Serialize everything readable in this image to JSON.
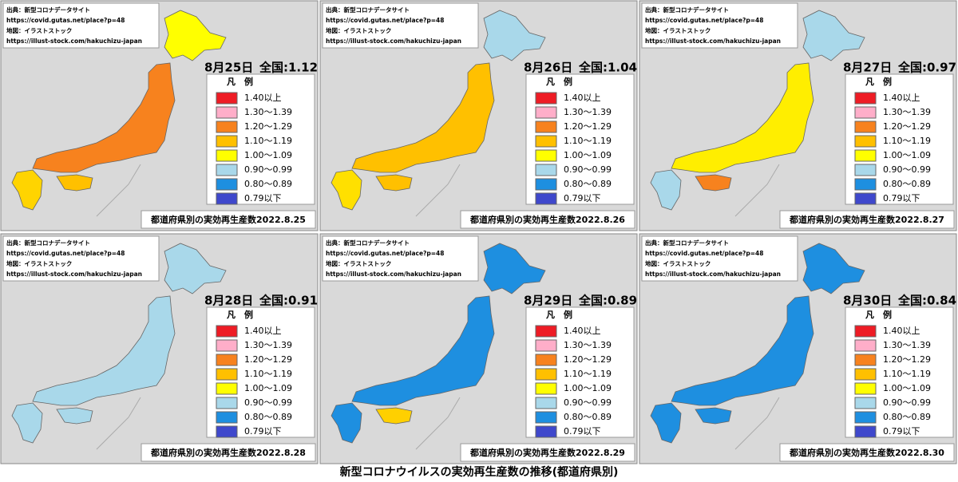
{
  "title": "新型コロナウイルスの実効再生産数の推移(都道府県別)",
  "source_lines": [
    "出典：新型コロナデータサイト",
    "https://covid.gutas.net/place?p=48",
    "地図：イラストストック",
    "https://illust-stock.com/hakuchizu-japan"
  ],
  "legend": {
    "title": "凡　例",
    "items": [
      {
        "label": "1.40以上",
        "color": "#ee1c25"
      },
      {
        "label": "1.30～1.39",
        "color": "#ffaec9"
      },
      {
        "label": "1.20～1.29",
        "color": "#f7821e"
      },
      {
        "label": "1.10～1.19",
        "color": "#ffc000"
      },
      {
        "label": "1.00～1.09",
        "color": "#ffff00"
      },
      {
        "label": "0.90～0.99",
        "color": "#a9d8ea"
      },
      {
        "label": "0.80～0.89",
        "color": "#1e8fe0"
      },
      {
        "label": "0.79以下",
        "color": "#3f48cc"
      }
    ]
  },
  "panels": [
    {
      "date": "8月25日",
      "national": "全国:1.12",
      "caption": "都道府県別の実効再生産数2022.8.25",
      "map_colors": [
        "#ffff00",
        "#f7821e",
        "#ffc000",
        "#ffd400"
      ]
    },
    {
      "date": "8月26日",
      "national": "全国:1.04",
      "caption": "都道府県別の実効再生産数2022.8.26",
      "map_colors": [
        "#a9d8ea",
        "#ffc000",
        "#ffc000",
        "#ffe000"
      ]
    },
    {
      "date": "8月27日",
      "national": "全国:0.97",
      "caption": "都道府県別の実効再生産数2022.8.27",
      "map_colors": [
        "#a9d8ea",
        "#ffee00",
        "#f7821e",
        "#a9d8ea"
      ]
    },
    {
      "date": "8月28日",
      "national": "全国:0.91",
      "caption": "都道府県別の実効再生産数2022.8.28",
      "map_colors": [
        "#a9d8ea",
        "#a9d8ea",
        "#a9d8ea",
        "#a9d8ea"
      ]
    },
    {
      "date": "8月29日",
      "national": "全国:0.89",
      "caption": "都道府県別の実効再生産数2022.8.29",
      "map_colors": [
        "#1e8fe0",
        "#1e8fe0",
        "#ffd000",
        "#1e8fe0"
      ]
    },
    {
      "date": "8月30日",
      "national": "全国:0.84",
      "caption": "都道府県別の実効再生産数2022.8.30",
      "map_colors": [
        "#1e8fe0",
        "#1e8fe0",
        "#1e8fe0",
        "#1e8fe0"
      ]
    }
  ]
}
